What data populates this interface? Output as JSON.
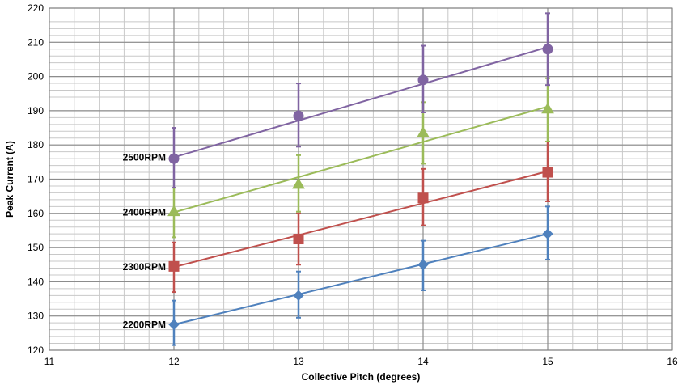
{
  "chart_data": {
    "type": "scatter",
    "title": "",
    "xlabel": "Collective Pitch (degrees)",
    "ylabel": "Peak Current (A)",
    "xlim": [
      11,
      16
    ],
    "ylim": [
      120,
      220
    ],
    "xticks": [
      11,
      12,
      13,
      14,
      15,
      16
    ],
    "yticks": [
      120,
      130,
      140,
      150,
      160,
      170,
      180,
      190,
      200,
      210,
      220
    ],
    "grid": true,
    "x_minor_step": 0.2,
    "y_minor_step": 2,
    "series": [
      {
        "name": "2200RPM",
        "color": "#4F81BD",
        "marker": "diamond",
        "x": [
          12,
          13,
          14,
          15
        ],
        "y": [
          127.5,
          136,
          145,
          154
        ],
        "err_low": [
          121.5,
          129.5,
          137.5,
          146.5
        ],
        "err_high": [
          134.5,
          143,
          152,
          162
        ],
        "fit": [
          [
            12,
            127.5
          ],
          [
            15,
            154
          ]
        ]
      },
      {
        "name": "2300RPM",
        "color": "#C0504D",
        "marker": "square",
        "x": [
          12,
          13,
          14,
          15
        ],
        "y": [
          144.5,
          152.5,
          164.5,
          172
        ],
        "err_low": [
          137,
          145,
          156.5,
          163.5
        ],
        "err_high": [
          151.5,
          160,
          173,
          181
        ],
        "fit": [
          [
            12,
            144.3
          ],
          [
            15,
            172.3
          ]
        ]
      },
      {
        "name": "2400RPM",
        "color": "#9BBB59",
        "marker": "triangle",
        "x": [
          12,
          13,
          14,
          15
        ],
        "y": [
          160.5,
          168.5,
          183.5,
          190.5
        ],
        "err_low": [
          153,
          160.5,
          174.5,
          181
        ],
        "err_high": [
          167.5,
          177,
          192.5,
          199.5
        ],
        "fit": [
          [
            12,
            160.3
          ],
          [
            15,
            191.2
          ]
        ]
      },
      {
        "name": "2500RPM",
        "color": "#8064A2",
        "marker": "circle",
        "x": [
          12,
          13,
          14,
          15
        ],
        "y": [
          176,
          188.5,
          199,
          208
        ],
        "err_low": [
          167.5,
          179.5,
          189.5,
          197.5
        ],
        "err_high": [
          185,
          198,
          209,
          218.5
        ],
        "fit": [
          [
            12,
            176.4
          ],
          [
            15,
            208.6
          ]
        ]
      }
    ]
  }
}
